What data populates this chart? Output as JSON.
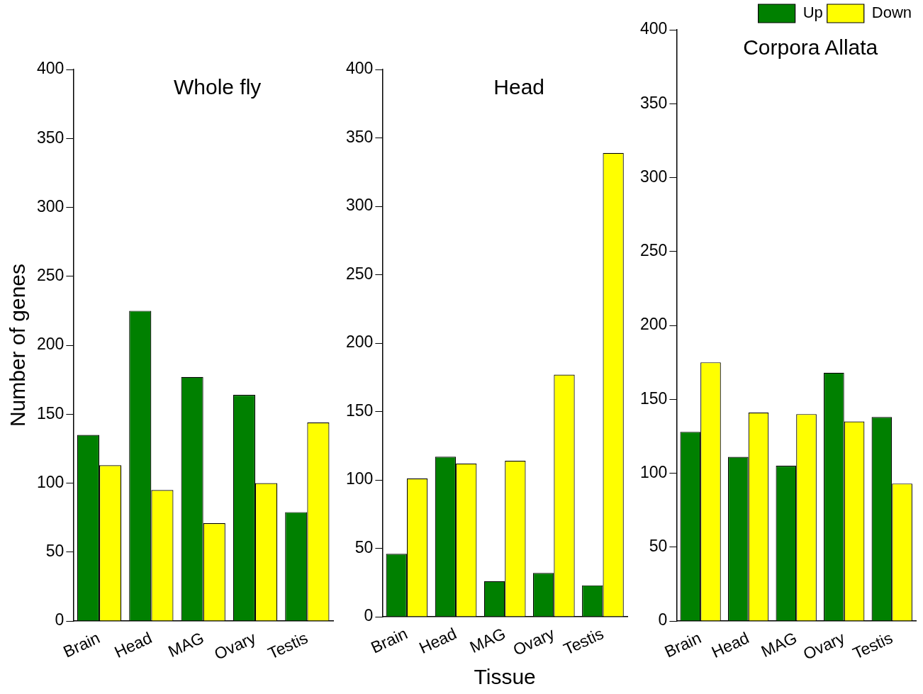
{
  "chart_data": [
    {
      "type": "bar",
      "title": "Whole fly",
      "ylabel": "Number of genes",
      "categories": [
        "Brain",
        "Head",
        "MAG",
        "Ovary",
        "Testis"
      ],
      "series": [
        {
          "color": "#008000",
          "values": [
            135,
            225,
            177,
            164,
            79
          ]
        },
        {
          "color": "#ffff00",
          "values": [
            113,
            95,
            71,
            100,
            144
          ]
        }
      ],
      "ylim": [
        0,
        400
      ],
      "yticks": [
        0,
        50,
        100,
        150,
        200,
        250,
        300,
        350,
        400
      ],
      "grid": false,
      "legend": false
    },
    {
      "type": "bar",
      "title": "Head",
      "xlabel": "Tissue",
      "categories": [
        "Brain",
        "Head",
        "MAG",
        "Ovary",
        "Testis"
      ],
      "series": [
        {
          "color": "#008000",
          "values": [
            46,
            117,
            26,
            32,
            23
          ]
        },
        {
          "color": "#ffff00",
          "values": [
            101,
            112,
            114,
            177,
            339
          ]
        }
      ],
      "ylim": [
        0,
        400
      ],
      "yticks": [
        0,
        50,
        100,
        150,
        200,
        250,
        300,
        350,
        400
      ],
      "grid": false,
      "legend": false
    },
    {
      "type": "bar",
      "title": "Corpora Allata",
      "categories": [
        "Brain",
        "Head",
        "MAG",
        "Ovary",
        "Testis"
      ],
      "series": [
        {
          "name": "Up",
          "color": "#008000",
          "values": [
            128,
            111,
            105,
            168,
            138
          ]
        },
        {
          "name": "Down",
          "color": "#ffff00",
          "values": [
            175,
            141,
            140,
            135,
            93
          ]
        }
      ],
      "ylim": [
        0,
        400
      ],
      "yticks": [
        0,
        50,
        100,
        150,
        200,
        250,
        300,
        350,
        400
      ],
      "grid": false,
      "legend": "top right"
    }
  ]
}
